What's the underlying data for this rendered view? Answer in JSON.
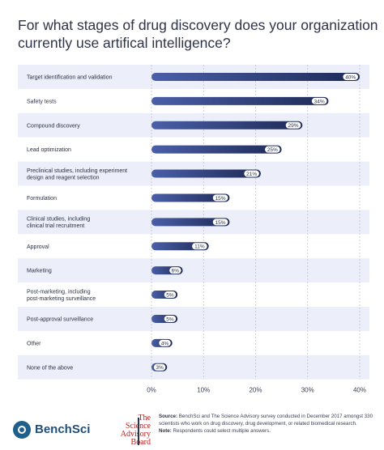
{
  "title_lines": [
    "For what stages of drug discovery does your organization",
    "currently use artifical intelligence?"
  ],
  "chart_data": {
    "type": "bar",
    "orientation": "horizontal",
    "categories": [
      [
        "Target identification and validation"
      ],
      [
        "Safety tests"
      ],
      [
        "Compound discovery"
      ],
      [
        "Lead optimization"
      ],
      [
        "Preclinical studies, including experiment",
        "design and reagent selection"
      ],
      [
        "Formulation"
      ],
      [
        "Clinical studies, including",
        "clinical trial recruitment"
      ],
      [
        "Approval"
      ],
      [
        "Marketing"
      ],
      [
        "Post-marketing, including",
        "post-marketing surveillance"
      ],
      [
        "Post-approval surveillance"
      ],
      [
        "Other"
      ],
      [
        "None of the above"
      ]
    ],
    "values": [
      40,
      34,
      29,
      25,
      21,
      15,
      15,
      11,
      6,
      5,
      5,
      4,
      3
    ],
    "value_labels": [
      "40%",
      "34%",
      "29%",
      "25%",
      "21%",
      "15%",
      "15%",
      "11%",
      "6%",
      "5%",
      "5%",
      "4%",
      "3%"
    ],
    "xlim": [
      0,
      40
    ],
    "ticks": [
      0,
      10,
      20,
      30,
      40
    ],
    "tick_labels": [
      "0%",
      "10%",
      "20%",
      "30%",
      "40%"
    ],
    "grid": "vertical",
    "colors": {
      "bar_start": "#4a5fa8",
      "bar_end": "#1e2a56",
      "band": "#eceef9",
      "label_bg": "#ffffff"
    }
  },
  "footer": {
    "benchsci": "BenchSci",
    "sab_lines": [
      "The",
      "Science",
      "Advisory",
      "Board"
    ],
    "source_label": "Source:",
    "source_text": "BenchSci and The Science Advisory survey conducted in December 2017 amongst 330 scientists who work on drug discovery, drug development, or related biomedical research.",
    "note_label": "Note:",
    "note_text": "Respondents could select multiple answers."
  }
}
